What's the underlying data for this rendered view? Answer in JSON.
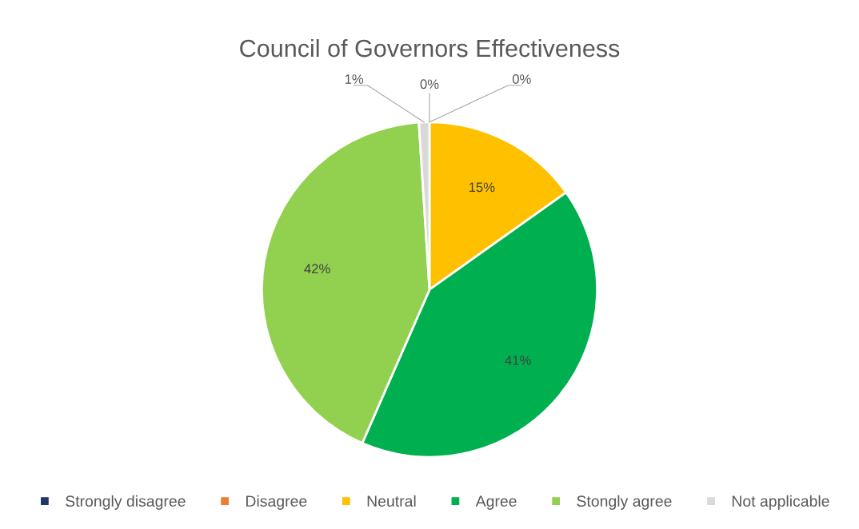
{
  "chart_data": {
    "type": "pie",
    "title": "Council of Governors Effectiveness",
    "categories": [
      "Strongly disagree",
      "Disagree",
      "Neutral",
      "Agree",
      "Stongly agree",
      "Not applicable"
    ],
    "values": [
      0,
      0,
      15,
      41,
      42,
      1
    ],
    "colors": [
      "#1f3864",
      "#ed7d31",
      "#ffc000",
      "#00b050",
      "#92d050",
      "#d9d9d9"
    ],
    "value_labels": [
      "0%",
      "0%",
      "15%",
      "41%",
      "42%",
      "1%"
    ],
    "legend": "bottom"
  }
}
